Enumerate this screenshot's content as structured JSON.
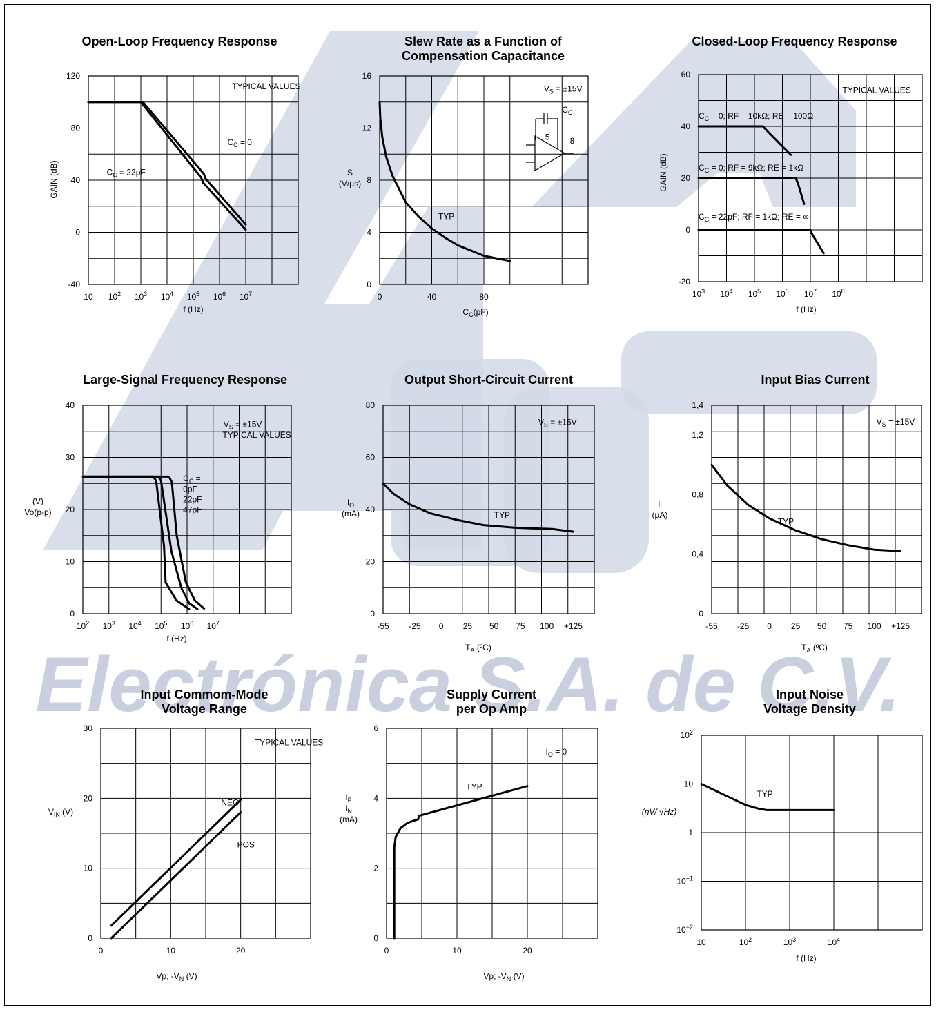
{
  "watermark": {
    "text": "Electrónica S.A. de C.V.",
    "colors": {
      "block": "#d4dae8",
      "text": "#c9cfdf"
    }
  },
  "chart_data": [
    {
      "id": "c1",
      "type": "line",
      "title": [
        "Open-Loop Frequency Response"
      ],
      "xlabel": "f (Hz)",
      "ylabel": "GAIN (dB)",
      "xscale": "log",
      "xlim": [
        10,
        1000000000.0
      ],
      "ylim": [
        -40,
        120
      ],
      "xticks": [
        "10",
        "10^2",
        "10^3",
        "10^4",
        "10^5",
        "10^6",
        "10^7"
      ],
      "yticks": [
        "-40",
        "0",
        "40",
        "80",
        "120"
      ],
      "grid": true,
      "grid_cols": 8,
      "grid_rows": 8,
      "series": [
        {
          "name": "C_C = 0",
          "points": [
            [
              10,
              100
            ],
            [
              1200,
              100
            ],
            [
              250000,
              45
            ],
            [
              300000,
              41
            ],
            [
              10000000,
              6
            ]
          ]
        },
        {
          "name": "C_C = 22pF",
          "points": [
            [
              10,
              100
            ],
            [
              1000,
              100
            ],
            [
              200000,
              42
            ],
            [
              240000,
              38
            ],
            [
              10000000,
              2
            ]
          ]
        }
      ],
      "annotations": [
        {
          "text": "TYPICAL VALUES",
          "x": 3000000.0,
          "y": 110
        },
        {
          "text": "C_C = 0",
          "x": 2000000.0,
          "y": 67
        },
        {
          "text": "C_C = 22pF",
          "x": 50,
          "y": 44
        }
      ]
    },
    {
      "id": "c2",
      "type": "line",
      "title": [
        "Slew Rate as a Function of",
        "Compensation Capacitance"
      ],
      "xlabel": "C_C(pF)",
      "ylabel": [
        "S",
        "(V/µs)"
      ],
      "xlim": [
        0,
        160
      ],
      "ylim": [
        0,
        16
      ],
      "xticks": [
        "0",
        "40",
        "80"
      ],
      "yticks": [
        "0",
        "4",
        "8",
        "12",
        "16"
      ],
      "grid": true,
      "grid_cols": 8,
      "grid_rows": 8,
      "series": [
        {
          "name": "TYP",
          "points": [
            [
              0,
              14
            ],
            [
              0.5,
              12.8
            ],
            [
              2,
              11.3
            ],
            [
              5,
              9.8
            ],
            [
              10,
              8.3
            ],
            [
              20,
              6.3
            ],
            [
              30,
              5.2
            ],
            [
              40,
              4.3
            ],
            [
              50,
              3.6
            ],
            [
              60,
              3.0
            ],
            [
              70,
              2.6
            ],
            [
              80,
              2.2
            ],
            [
              90,
              2.0
            ],
            [
              100,
              1.8
            ]
          ]
        }
      ],
      "annotations": [
        {
          "text": "TYP",
          "x": 45,
          "y": 5
        },
        {
          "text": "V_S = ±15V",
          "x": 126,
          "y": 14.8
        },
        {
          "text": "C_C",
          "x": 140,
          "y": 13.2
        },
        {
          "text": "5",
          "x": 127,
          "y": 11.1
        },
        {
          "text": "8",
          "x": 146,
          "y": 10.8
        }
      ]
    },
    {
      "id": "c3",
      "type": "line",
      "title": [
        "Closed-Loop Frequency Response"
      ],
      "xlabel": "f (Hz)",
      "ylabel": "GAIN (dB)",
      "xscale": "log",
      "xlim": [
        1000,
        100000000000.0
      ],
      "ylim": [
        -20,
        60
      ],
      "xticks": [
        "10^3",
        "10^4",
        "10^5",
        "10^6",
        "10^7",
        "10^8"
      ],
      "yticks": [
        "-20",
        "0",
        "20",
        "40",
        "60"
      ],
      "grid": true,
      "grid_cols": 8,
      "grid_rows": 8,
      "series": [
        {
          "name": "C_C = 0; RF = 10kΩ; RE = 100Ω",
          "points": [
            [
              1000,
              40
            ],
            [
              200000,
              40
            ],
            [
              300000,
              38
            ],
            [
              2000000,
              29
            ]
          ]
        },
        {
          "name": "C_C = 0; RF = 9kΩ; RE = 1kΩ",
          "points": [
            [
              1000,
              20
            ],
            [
              3000000,
              20
            ],
            [
              3600000,
              18
            ],
            [
              6000000,
              10
            ]
          ]
        },
        {
          "name": "C_C = 22pF; RF = 1kΩ; RE = ∞",
          "points": [
            [
              1000,
              0
            ],
            [
              10000000,
              0
            ],
            [
              12000000,
              -2
            ],
            [
              30000000,
              -9
            ]
          ]
        }
      ],
      "annotations": [
        {
          "text": "TYPICAL VALUES",
          "x": 140000000.0,
          "y": 53
        },
        {
          "text": "C_C = 0; RF = 10kΩ; RE = 100Ω",
          "x": 1000,
          "y": 43
        },
        {
          "text": "C_C = 0; RF = 9kΩ; RE = 1kΩ",
          "x": 1000,
          "y": 23
        },
        {
          "text": "C_C = 22pF; RF = 1kΩ; RE = ∞",
          "x": 1000,
          "y": 4
        }
      ]
    },
    {
      "id": "c4",
      "type": "line",
      "title": [
        "Large-Signal Frequency Response"
      ],
      "xlabel": "f (Hz)",
      "ylabel": [
        "(V)",
        "Vo(p-p)"
      ],
      "xscale": "log",
      "xlim": [
        100,
        10000000000.0
      ],
      "ylim": [
        0,
        40
      ],
      "xticks": [
        "10^2",
        "10^3",
        "10^4",
        "10^5",
        "10^6",
        "10^7"
      ],
      "yticks": [
        "0",
        "10",
        "20",
        "30",
        "40"
      ],
      "grid": true,
      "grid_cols": 8,
      "grid_rows": 8,
      "series": [
        {
          "name": "0pF",
          "points": [
            [
              100,
              26.3
            ],
            [
              200000,
              26.3
            ],
            [
              260000,
              25.3
            ],
            [
              400000,
              15
            ],
            [
              900000,
              6
            ],
            [
              2000000,
              2.5
            ],
            [
              4500000,
              1
            ]
          ]
        },
        {
          "name": "22pF",
          "points": [
            [
              100,
              26.3
            ],
            [
              80000,
              26.3
            ],
            [
              100000,
              25.5
            ],
            [
              250000,
              12
            ],
            [
              600000,
              5
            ],
            [
              1200000,
              2
            ],
            [
              2500000,
              0.9
            ]
          ]
        },
        {
          "name": "47pF",
          "points": [
            [
              100,
              26.3
            ],
            [
              50000,
              26.3
            ],
            [
              65000,
              25.5
            ],
            [
              130000,
              13
            ],
            [
              150000,
              6
            ],
            [
              400000,
              2.5
            ],
            [
              1200000,
              0.9
            ]
          ]
        }
      ],
      "annotations": [
        {
          "text": "V_S = ±15V",
          "x": 25000000.0,
          "y": 35.8
        },
        {
          "text": "TYPICAL VALUES",
          "x": 23000000.0,
          "y": 33.8
        },
        {
          "text": "C_C =",
          "x": 700000,
          "y": 25.4
        },
        {
          "text": "0pF",
          "x": 700000,
          "y": 23.4
        },
        {
          "text": "22pF",
          "x": 700000,
          "y": 21.4
        },
        {
          "text": "47pF",
          "x": 700000,
          "y": 19.4
        }
      ]
    },
    {
      "id": "c5",
      "type": "line",
      "title": [
        "Output Short-Circuit Current"
      ],
      "xlabel": "T_A (ºC)",
      "ylabel": [
        "I_O",
        "(mA)"
      ],
      "xlim": [
        -55,
        145
      ],
      "ylim": [
        0,
        80
      ],
      "xticks": [
        "-55",
        "-25",
        "0",
        "25",
        "50",
        "75",
        "100",
        "+125"
      ],
      "xtick_values": [
        -55,
        -25,
        0,
        25,
        50,
        75,
        100,
        125
      ],
      "yticks": [
        "0",
        "20",
        "40",
        "60",
        "80"
      ],
      "grid": true,
      "grid_cols": 8,
      "grid_rows": 8,
      "series": [
        {
          "name": "TYP",
          "points": [
            [
              -55,
              50
            ],
            [
              -45,
              46
            ],
            [
              -30,
              42
            ],
            [
              -10,
              38.5
            ],
            [
              15,
              36
            ],
            [
              40,
              34
            ],
            [
              70,
              33
            ],
            [
              105,
              32.5
            ],
            [
              125,
              31.5
            ]
          ]
        }
      ],
      "annotations": [
        {
          "text": "TYP",
          "x": 50,
          "y": 36.8
        },
        {
          "text": "V_S = ±15V",
          "x": 92,
          "y": 72.5
        }
      ]
    },
    {
      "id": "c6",
      "type": "line",
      "title": [
        "Input Bias Current"
      ],
      "xlabel": "T_A (ºC)",
      "ylabel": [
        "I_I",
        "(µA)"
      ],
      "xlim": [
        -55,
        145
      ],
      "ylim": [
        0,
        1.4
      ],
      "xticks": [
        "-55",
        "-25",
        "0",
        "25",
        "50",
        "75",
        "100",
        "+125"
      ],
      "xtick_values": [
        -55,
        -25,
        0,
        25,
        50,
        75,
        100,
        125
      ],
      "yticks": [
        "0",
        "0,4",
        "0,8",
        "1,2",
        "1,4"
      ],
      "ytick_values": [
        0,
        0.4,
        0.8,
        1.2,
        1.4
      ],
      "grid": true,
      "grid_cols": 8,
      "grid_rows": 8,
      "series": [
        {
          "name": "TYP",
          "points": [
            [
              -55,
              1.0
            ],
            [
              -40,
              0.86
            ],
            [
              -20,
              0.73
            ],
            [
              0,
              0.64
            ],
            [
              25,
              0.56
            ],
            [
              50,
              0.5
            ],
            [
              75,
              0.46
            ],
            [
              100,
              0.43
            ],
            [
              125,
              0.42
            ]
          ]
        }
      ],
      "annotations": [
        {
          "text": "TYP",
          "x": 8,
          "y": 0.6
        },
        {
          "text": "V_S = ±15V",
          "x": 102,
          "y": 1.27
        }
      ]
    },
    {
      "id": "c7",
      "type": "line",
      "title": [
        "Input Commom-Mode",
        "Voltage Range"
      ],
      "xlabel": "Vp; -V_N (V)",
      "ylabel": "V_IN (V)",
      "xlim": [
        0,
        30
      ],
      "ylim": [
        0,
        30
      ],
      "xticks": [
        "0",
        "10",
        "20"
      ],
      "yticks": [
        "0",
        "10",
        "20",
        "30"
      ],
      "grid": true,
      "grid_cols": 6,
      "grid_rows": 6,
      "series": [
        {
          "name": "NEG",
          "points": [
            [
              1.5,
              1.8
            ],
            [
              20,
              19.8
            ]
          ]
        },
        {
          "name": "POS",
          "points": [
            [
              1.5,
              0
            ],
            [
              20,
              18
            ]
          ]
        }
      ],
      "annotations": [
        {
          "text": "TYPICAL VALUES",
          "x": 22,
          "y": 27.6
        },
        {
          "text": "NEG",
          "x": 17.2,
          "y": 19
        },
        {
          "text": "POS",
          "x": 19.5,
          "y": 13
        }
      ]
    },
    {
      "id": "c8",
      "type": "line",
      "title": [
        "Supply Current",
        "per Op Amp"
      ],
      "xlabel": "Vp; -V_N (V)",
      "ylabel": [
        "I_P",
        "I_N",
        "(mA)"
      ],
      "xlim": [
        0,
        30
      ],
      "ylim": [
        0,
        6
      ],
      "xticks": [
        "0",
        "10",
        "20"
      ],
      "yticks": [
        "0",
        "2",
        "4",
        "6"
      ],
      "grid": true,
      "grid_cols": 6,
      "grid_rows": 6,
      "series": [
        {
          "name": "TYP",
          "points": [
            [
              1.1,
              0
            ],
            [
              1.1,
              2.6
            ],
            [
              1.3,
              2.9
            ],
            [
              2,
              3.15
            ],
            [
              3,
              3.3
            ],
            [
              4.5,
              3.4
            ],
            [
              4.6,
              3.5
            ],
            [
              20,
              4.35
            ]
          ]
        }
      ],
      "annotations": [
        {
          "text": "TYP",
          "x": 11.3,
          "y": 4.25
        },
        {
          "text": "I_O = 0",
          "x": 22.6,
          "y": 5.25
        }
      ]
    },
    {
      "id": "c9",
      "type": "line",
      "title": [
        "Input Noise",
        "Voltage Density"
      ],
      "xlabel": "f (Hz)",
      "ylabel": "(nV/ √Hz)",
      "xscale": "log",
      "yscale": "log",
      "xlim": [
        10,
        1000000.0
      ],
      "ylim": [
        0.01,
        100
      ],
      "xticks": [
        "10",
        "10^2",
        "10^3",
        "10^4"
      ],
      "yticks": [
        "10^-2",
        "10^-1",
        "1",
        "10",
        "10^2"
      ],
      "grid": true,
      "grid_cols": 5,
      "grid_rows": 4,
      "series": [
        {
          "name": "TYP",
          "points": [
            [
              10,
              10
            ],
            [
              40,
              5.5
            ],
            [
              100,
              3.7
            ],
            [
              200,
              3.1
            ],
            [
              300,
              2.9
            ],
            [
              10000,
              2.9
            ]
          ]
        }
      ],
      "annotations": [
        {
          "text": "TYP",
          "x": 180,
          "y": 5.5
        }
      ]
    }
  ]
}
